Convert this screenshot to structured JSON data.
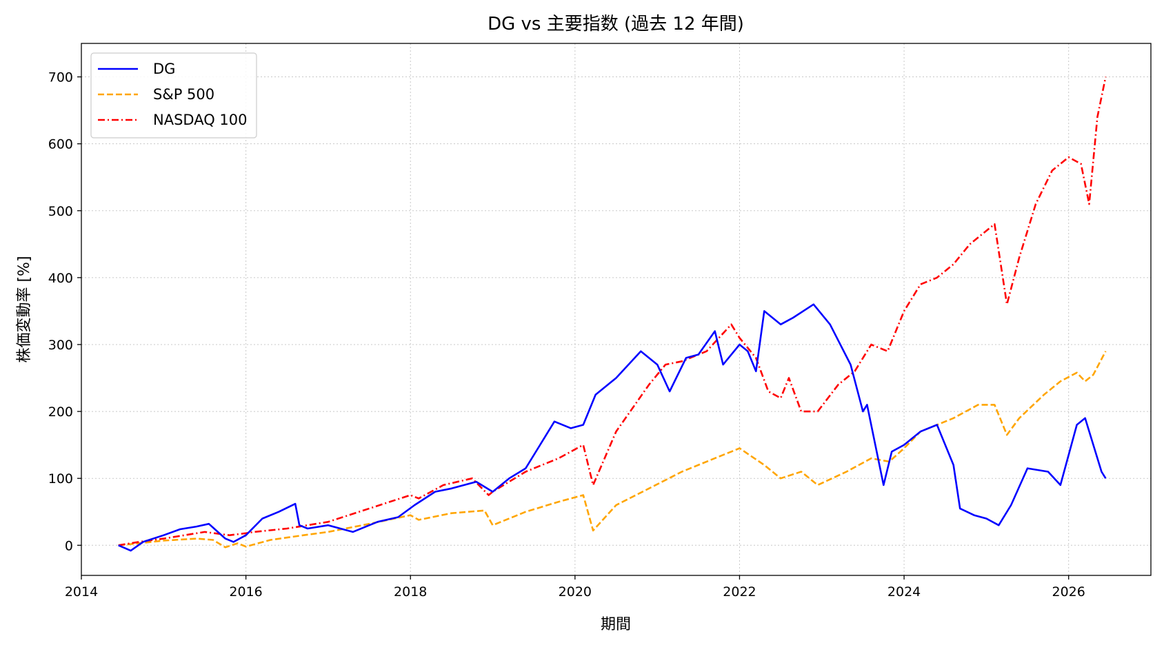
{
  "chart_data": {
    "type": "line",
    "title": "DG vs 主要指数 (過去 12 年間)",
    "xlabel": "期間",
    "ylabel": "株価変動率 [%]",
    "xlim": [
      2014.0,
      2027.0
    ],
    "ylim": [
      -45,
      750
    ],
    "x_ticks": [
      2014,
      2016,
      2018,
      2020,
      2022,
      2024,
      2026
    ],
    "x_tick_labels": [
      "2014",
      "2016",
      "2018",
      "2020",
      "2022",
      "2024",
      "2026"
    ],
    "y_ticks": [
      0,
      100,
      200,
      300,
      400,
      500,
      600,
      700
    ],
    "y_tick_labels": [
      "0",
      "100",
      "200",
      "300",
      "400",
      "500",
      "600",
      "700"
    ],
    "grid": true,
    "legend_position": "top-left",
    "series": [
      {
        "name": "DG",
        "color": "#0000ff",
        "line_style": "solid",
        "x": [
          2014.45,
          2014.6,
          2014.75,
          2015.0,
          2015.2,
          2015.4,
          2015.55,
          2015.75,
          2015.85,
          2016.0,
          2016.2,
          2016.4,
          2016.6,
          2016.65,
          2016.75,
          2017.0,
          2017.3,
          2017.6,
          2017.85,
          2018.05,
          2018.3,
          2018.5,
          2018.8,
          2019.0,
          2019.2,
          2019.4,
          2019.55,
          2019.75,
          2019.95,
          2020.1,
          2020.25,
          2020.5,
          2020.8,
          2021.0,
          2021.15,
          2021.35,
          2021.5,
          2021.7,
          2021.8,
          2022.0,
          2022.1,
          2022.2,
          2022.3,
          2022.5,
          2022.65,
          2022.9,
          2023.1,
          2023.35,
          2023.5,
          2023.55,
          2023.75,
          2023.85,
          2024.0,
          2024.2,
          2024.4,
          2024.6,
          2024.68,
          2024.85,
          2025.0,
          2025.15,
          2025.3,
          2025.5,
          2025.75,
          2025.9,
          2026.1,
          2026.2,
          2026.3,
          2026.4,
          2026.45
        ],
        "values": [
          0,
          -8,
          5,
          15,
          24,
          28,
          32,
          10,
          5,
          15,
          40,
          50,
          62,
          30,
          25,
          30,
          20,
          35,
          42,
          60,
          80,
          85,
          95,
          80,
          100,
          115,
          145,
          185,
          175,
          180,
          225,
          250,
          290,
          270,
          230,
          280,
          285,
          320,
          270,
          300,
          290,
          260,
          350,
          330,
          340,
          360,
          330,
          270,
          200,
          210,
          90,
          140,
          150,
          170,
          180,
          120,
          55,
          45,
          40,
          30,
          60,
          115,
          110,
          90,
          180,
          190,
          150,
          110,
          100
        ]
      },
      {
        "name": "S&P 500",
        "color": "#ffa500",
        "line_style": "dashed",
        "x": [
          2014.45,
          2014.7,
          2015.0,
          2015.4,
          2015.6,
          2015.75,
          2015.9,
          2016.0,
          2016.3,
          2016.7,
          2017.0,
          2017.5,
          2018.0,
          2018.1,
          2018.5,
          2018.9,
          2019.0,
          2019.4,
          2019.8,
          2020.1,
          2020.22,
          2020.5,
          2020.9,
          2021.3,
          2021.6,
          2021.9,
          2022.0,
          2022.3,
          2022.5,
          2022.75,
          2022.95,
          2023.3,
          2023.6,
          2023.82,
          2024.0,
          2024.2,
          2024.6,
          2024.9,
          2025.1,
          2025.25,
          2025.4,
          2025.7,
          2025.9,
          2026.1,
          2026.2,
          2026.3,
          2026.45
        ],
        "values": [
          0,
          3,
          7,
          10,
          8,
          -3,
          3,
          -2,
          8,
          15,
          20,
          32,
          45,
          38,
          48,
          52,
          30,
          50,
          65,
          75,
          22,
          60,
          85,
          110,
          125,
          140,
          145,
          120,
          100,
          110,
          90,
          110,
          130,
          125,
          145,
          170,
          190,
          210,
          210,
          165,
          190,
          225,
          245,
          258,
          245,
          255,
          290
        ]
      },
      {
        "name": "NASDAQ 100",
        "color": "#ff0000",
        "line_style": "dashdot",
        "x": [
          2014.45,
          2014.7,
          2015.0,
          2015.5,
          2015.8,
          2016.0,
          2016.1,
          2016.5,
          2017.0,
          2017.5,
          2018.0,
          2018.1,
          2018.4,
          2018.75,
          2018.95,
          2019.0,
          2019.4,
          2019.8,
          2020.1,
          2020.22,
          2020.5,
          2020.9,
          2021.1,
          2021.3,
          2021.6,
          2021.9,
          2022.0,
          2022.2,
          2022.35,
          2022.5,
          2022.6,
          2022.75,
          2022.95,
          2023.2,
          2023.4,
          2023.6,
          2023.8,
          2024.0,
          2024.2,
          2024.4,
          2024.6,
          2024.8,
          2025.0,
          2025.1,
          2025.25,
          2025.4,
          2025.6,
          2025.8,
          2026.0,
          2026.15,
          2026.25,
          2026.35,
          2026.45
        ],
        "values": [
          0,
          5,
          10,
          20,
          15,
          18,
          20,
          25,
          35,
          55,
          75,
          70,
          90,
          100,
          75,
          80,
          110,
          130,
          150,
          90,
          170,
          240,
          270,
          275,
          290,
          330,
          310,
          280,
          230,
          220,
          250,
          200,
          200,
          240,
          260,
          300,
          290,
          350,
          390,
          400,
          420,
          450,
          470,
          480,
          360,
          430,
          510,
          560,
          580,
          570,
          510,
          640,
          700
        ]
      }
    ]
  }
}
